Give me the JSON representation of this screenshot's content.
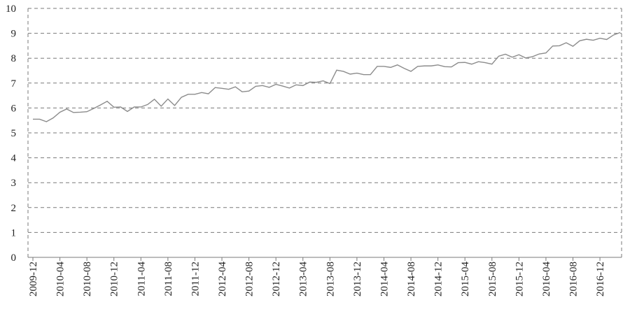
{
  "chart_data": {
    "type": "line",
    "title": "",
    "xlabel": "",
    "ylabel": "",
    "ylim": [
      0,
      10
    ],
    "yticks": [
      "0",
      "1",
      "2",
      "3",
      "4",
      "5",
      "6",
      "7",
      "8",
      "9",
      "10"
    ],
    "grid": true,
    "legend": "none",
    "line_color": "#8c8c8c",
    "grid_color": "#7a7a7a",
    "xticks": [
      "2009-12",
      "2010-04",
      "2010-08",
      "2010-12",
      "2011-04",
      "2011-08",
      "2011-12",
      "2012-04",
      "2012-08",
      "2012-12",
      "2013-04",
      "2013-08",
      "2013-12",
      "2014-04",
      "2014-08",
      "2014-12",
      "2015-04",
      "2015-08",
      "2015-12",
      "2016-04",
      "2016-08",
      "2016-12"
    ],
    "x": [
      "2009-12",
      "2010-01",
      "2010-02",
      "2010-03",
      "2010-04",
      "2010-05",
      "2010-06",
      "2010-07",
      "2010-08",
      "2010-09",
      "2010-10",
      "2010-11",
      "2010-12",
      "2011-01",
      "2011-02",
      "2011-03",
      "2011-04",
      "2011-05",
      "2011-06",
      "2011-07",
      "2011-08",
      "2011-09",
      "2011-10",
      "2011-11",
      "2011-12",
      "2012-01",
      "2012-02",
      "2012-03",
      "2012-04",
      "2012-05",
      "2012-06",
      "2012-07",
      "2012-08",
      "2012-09",
      "2012-10",
      "2012-11",
      "2012-12",
      "2013-01",
      "2013-02",
      "2013-03",
      "2013-04",
      "2013-05",
      "2013-06",
      "2013-07",
      "2013-08",
      "2013-09",
      "2013-10",
      "2013-11",
      "2013-12",
      "2014-01",
      "2014-02",
      "2014-03",
      "2014-04",
      "2014-05",
      "2014-06",
      "2014-07",
      "2014-08",
      "2014-09",
      "2014-10",
      "2014-11",
      "2014-12",
      "2015-01",
      "2015-02",
      "2015-03",
      "2015-04",
      "2015-05",
      "2015-06",
      "2015-07",
      "2015-08",
      "2015-09",
      "2015-10",
      "2015-11",
      "2015-12",
      "2016-01",
      "2016-02",
      "2016-03",
      "2016-04",
      "2016-05",
      "2016-06",
      "2016-07",
      "2016-08",
      "2016-09",
      "2016-10",
      "2016-11",
      "2016-12",
      "2017-01",
      "2017-02",
      "2017-03"
    ],
    "values": [
      5.55,
      5.55,
      5.45,
      5.6,
      5.83,
      5.96,
      5.82,
      5.83,
      5.85,
      5.98,
      6.12,
      6.27,
      6.03,
      6.04,
      5.86,
      6.04,
      6.04,
      6.14,
      6.35,
      6.07,
      6.36,
      6.1,
      6.43,
      6.55,
      6.55,
      6.62,
      6.57,
      6.82,
      6.79,
      6.75,
      6.85,
      6.65,
      6.68,
      6.87,
      6.9,
      6.83,
      6.95,
      6.88,
      6.8,
      6.93,
      6.9,
      7.04,
      7.03,
      7.09,
      6.98,
      7.52,
      7.47,
      7.36,
      7.4,
      7.34,
      7.34,
      7.67,
      7.67,
      7.63,
      7.73,
      7.59,
      7.47,
      7.67,
      7.69,
      7.69,
      7.73,
      7.66,
      7.65,
      7.82,
      7.83,
      7.76,
      7.86,
      7.82,
      7.76,
      8.08,
      8.16,
      8.04,
      8.14,
      8.01,
      8.06,
      8.17,
      8.21,
      8.49,
      8.5,
      8.62,
      8.48,
      8.7,
      8.76,
      8.72,
      8.8,
      8.75,
      8.93,
      9.03
    ]
  }
}
